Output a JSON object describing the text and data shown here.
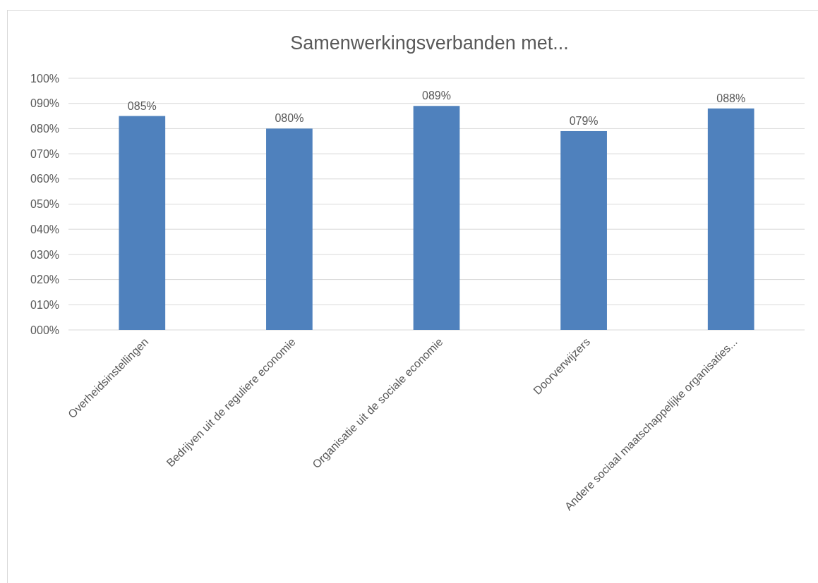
{
  "chart_data": {
    "type": "bar",
    "title": "Samenwerkingsverbanden met...",
    "categories": [
      "Overheidsinstellingen",
      "Bedrijven uit de reguliere economie",
      "Organisatie uit de sociale economie",
      "Doorverwijzers",
      "Andere sociaal maatschappelijke organisaties..."
    ],
    "values": [
      85,
      80,
      89,
      79,
      88
    ],
    "value_labels": [
      "085%",
      "080%",
      "089%",
      "079%",
      "088%"
    ],
    "color": "#4f81bd",
    "ylim": [
      0,
      100
    ],
    "yticks": [
      {
        "value": 0,
        "label": "000%"
      },
      {
        "value": 10,
        "label": "010%"
      },
      {
        "value": 20,
        "label": "020%"
      },
      {
        "value": 30,
        "label": "030%"
      },
      {
        "value": 40,
        "label": "040%"
      },
      {
        "value": 50,
        "label": "050%"
      },
      {
        "value": 60,
        "label": "060%"
      },
      {
        "value": 70,
        "label": "070%"
      },
      {
        "value": 80,
        "label": "080%"
      },
      {
        "value": 90,
        "label": "090%"
      },
      {
        "value": 100,
        "label": "100%"
      }
    ],
    "grid": "y"
  }
}
